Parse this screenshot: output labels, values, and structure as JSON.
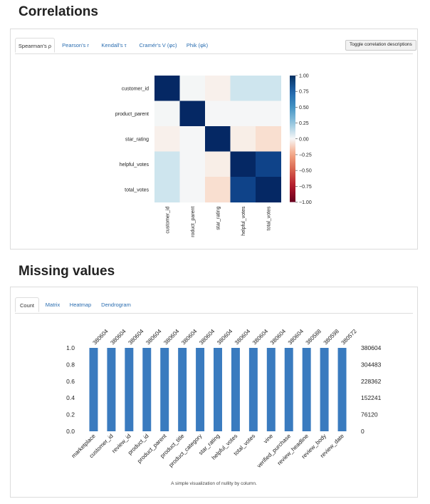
{
  "correlations": {
    "title": "Correlations",
    "tabs": [
      {
        "label": "Spearman's ρ",
        "active": true
      },
      {
        "label": "Pearson's r",
        "active": false
      },
      {
        "label": "Kendall's τ",
        "active": false
      },
      {
        "label": "Cramér's V (φc)",
        "active": false
      },
      {
        "label": "Phik (φk)",
        "active": false
      }
    ],
    "toggle_label": "Toggle correlation descriptions"
  },
  "missing": {
    "title": "Missing values",
    "tabs": [
      {
        "label": "Count",
        "active": true
      },
      {
        "label": "Matrix",
        "active": false
      },
      {
        "label": "Heatmap",
        "active": false
      },
      {
        "label": "Dendrogram",
        "active": false
      }
    ],
    "caption": "A simple visualization of nullity by column."
  },
  "colors": {
    "bar": "#3a7bbf",
    "heat_pos": "#08306b",
    "heat_neg": "#67001f"
  },
  "chart_data": [
    {
      "type": "heatmap",
      "row_labels": [
        "customer_id",
        "product_parent",
        "star_rating",
        "helpful_votes",
        "total_votes"
      ],
      "col_labels": [
        "customer_id",
        "roduct_parent",
        "star_rating",
        "helpful_votes",
        "total_votes"
      ],
      "values": [
        [
          1.0,
          0.02,
          -0.04,
          0.25,
          0.25
        ],
        [
          0.02,
          1.0,
          0.01,
          0.01,
          0.01
        ],
        [
          -0.04,
          0.01,
          1.0,
          -0.06,
          -0.18
        ],
        [
          0.25,
          0.01,
          -0.06,
          1.0,
          0.9
        ],
        [
          0.25,
          0.01,
          -0.18,
          0.9,
          1.0
        ]
      ],
      "colorbar_ticks": [
        "1.00",
        "0.75",
        "0.50",
        "0.25",
        "0.00",
        "−0.25",
        "−0.50",
        "−0.75",
        "−1.00"
      ],
      "vmin": -1,
      "vmax": 1
    },
    {
      "type": "bar",
      "categories": [
        "marketplace",
        "customer_id",
        "review_id",
        "product_id",
        "product_parent",
        "product_title",
        "product_category",
        "star_rating",
        "helpful_votes",
        "total_votes",
        "vine",
        "verified_purchase",
        "review_headline",
        "review_body",
        "review_date"
      ],
      "values": [
        380604,
        380604,
        380604,
        380604,
        380604,
        380604,
        380604,
        380604,
        380604,
        380604,
        380604,
        380604,
        380588,
        380598,
        380572
      ],
      "value_labels": [
        "380604",
        "380604",
        "380604",
        "380604",
        "380604",
        "380604",
        "380604",
        "380604",
        "380604",
        "380604",
        "380604",
        "380604",
        "380588",
        "380598",
        "380572"
      ],
      "left_ticks": [
        "1.0",
        "0.8",
        "0.6",
        "0.4",
        "0.2",
        "0.0"
      ],
      "right_ticks": [
        "380604",
        "304483",
        "228362",
        "152241",
        "76120",
        "0"
      ],
      "ylim": [
        0,
        380604
      ]
    }
  ]
}
